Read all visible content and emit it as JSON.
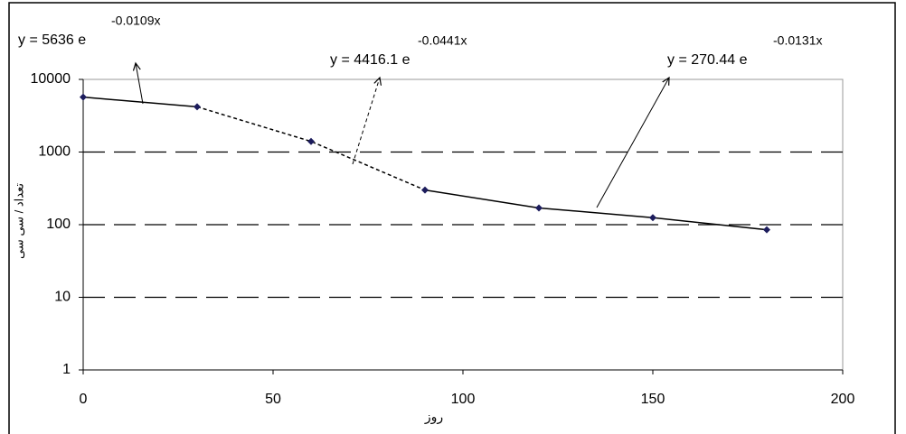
{
  "chart_data": {
    "type": "scatter",
    "x": [
      0,
      30,
      60,
      90,
      120,
      150,
      180
    ],
    "values": [
      5700,
      4200,
      1400,
      300,
      170,
      125,
      85
    ],
    "color": "#1c1c5c",
    "xlabel": "روز",
    "ylabel": "تعداد / سی سی",
    "xlim": [
      0,
      200
    ],
    "xticks": [
      0,
      50,
      100,
      150,
      200
    ],
    "ylim": [
      1,
      10000
    ],
    "yticks": [
      1,
      10,
      100,
      1000,
      10000
    ],
    "log_y": true,
    "grid": true,
    "segments": [
      {
        "start": 0,
        "end": 30,
        "style": "solid"
      },
      {
        "start": 30,
        "end": 90,
        "style": "dashed"
      },
      {
        "start": 90,
        "end": 180,
        "style": "solid"
      }
    ],
    "annotations": [
      {
        "text": "y = 5636 e",
        "exponent": "-0.0109x"
      },
      {
        "text": "y = 4416.1 e",
        "exponent": "-0.0441x"
      },
      {
        "text": "y = 270.44 e",
        "exponent": "-0.0131x"
      }
    ]
  }
}
